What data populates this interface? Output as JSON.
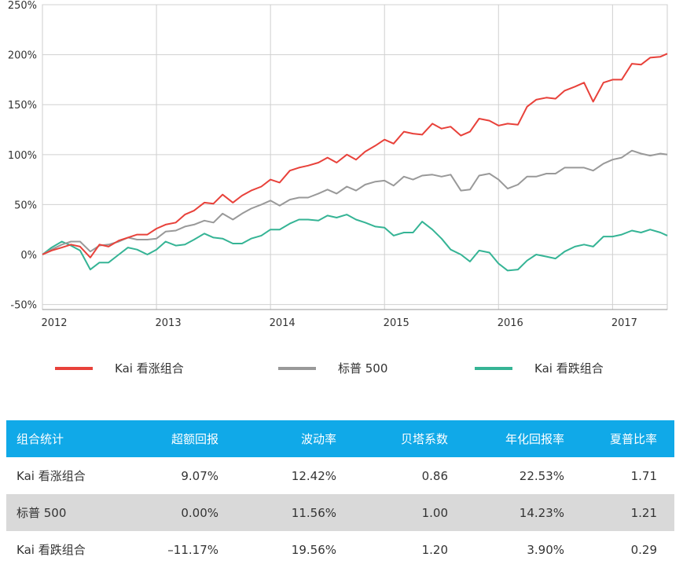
{
  "chart_data": {
    "type": "line",
    "title": "",
    "xlabel": "",
    "ylabel": "",
    "xlim": [
      2012.0,
      2017.48
    ],
    "ylim": [
      -55,
      250
    ],
    "y_ticks": [
      250,
      200,
      150,
      100,
      50,
      0,
      -50
    ],
    "y_tick_labels": [
      "250%",
      "200%",
      "150%",
      "100%",
      "50%",
      "0%",
      "-50%"
    ],
    "x_ticks": [
      2012,
      2013,
      2014,
      2015,
      2016,
      2017
    ],
    "x_tick_labels": [
      "2012",
      "2013",
      "2014",
      "2015",
      "2016",
      "2017"
    ],
    "grid": true,
    "legend_position": "bottom",
    "series": [
      {
        "name": "Kai 看涨组合",
        "color": "#e8413a",
        "x": [
          2012.0,
          2012.08,
          2012.17,
          2012.25,
          2012.33,
          2012.42,
          2012.5,
          2012.58,
          2012.67,
          2012.75,
          2012.83,
          2012.92,
          2013.0,
          2013.08,
          2013.17,
          2013.25,
          2013.33,
          2013.42,
          2013.5,
          2013.58,
          2013.67,
          2013.75,
          2013.83,
          2013.92,
          2014.0,
          2014.08,
          2014.17,
          2014.25,
          2014.33,
          2014.42,
          2014.5,
          2014.58,
          2014.67,
          2014.75,
          2014.83,
          2014.92,
          2015.0,
          2015.08,
          2015.17,
          2015.25,
          2015.33,
          2015.42,
          2015.5,
          2015.58,
          2015.67,
          2015.75,
          2015.83,
          2015.92,
          2016.0,
          2016.08,
          2016.17,
          2016.25,
          2016.33,
          2016.42,
          2016.5,
          2016.58,
          2016.67,
          2016.75,
          2016.83,
          2016.92,
          2017.0,
          2017.08,
          2017.17,
          2017.25,
          2017.33,
          2017.42,
          2017.48
        ],
        "values": [
          0,
          4,
          7,
          10,
          8,
          -3,
          10,
          8,
          14,
          17,
          20,
          20,
          26,
          30,
          32,
          40,
          44,
          52,
          51,
          60,
          52,
          59,
          64,
          68,
          75,
          72,
          84,
          87,
          89,
          92,
          97,
          92,
          100,
          95,
          103,
          109,
          115,
          111,
          123,
          121,
          120,
          131,
          126,
          128,
          119,
          123,
          136,
          134,
          129,
          131,
          130,
          148,
          155,
          157,
          156,
          164,
          168,
          172,
          153,
          172,
          175,
          175,
          191,
          190,
          197,
          198,
          201
        ]
      },
      {
        "name": "标普 500",
        "color": "#999999",
        "x": [
          2012.0,
          2012.08,
          2012.17,
          2012.25,
          2012.33,
          2012.42,
          2012.5,
          2012.58,
          2012.67,
          2012.75,
          2012.83,
          2012.92,
          2013.0,
          2013.08,
          2013.17,
          2013.25,
          2013.33,
          2013.42,
          2013.5,
          2013.58,
          2013.67,
          2013.75,
          2013.83,
          2013.92,
          2014.0,
          2014.08,
          2014.17,
          2014.25,
          2014.33,
          2014.42,
          2014.5,
          2014.58,
          2014.67,
          2014.75,
          2014.83,
          2014.92,
          2015.0,
          2015.08,
          2015.17,
          2015.25,
          2015.33,
          2015.42,
          2015.5,
          2015.58,
          2015.67,
          2015.75,
          2015.83,
          2015.92,
          2016.0,
          2016.08,
          2016.17,
          2016.25,
          2016.33,
          2016.42,
          2016.5,
          2016.58,
          2016.67,
          2016.75,
          2016.83,
          2016.92,
          2017.0,
          2017.08,
          2017.17,
          2017.25,
          2017.33,
          2017.42,
          2017.48
        ],
        "values": [
          0,
          5,
          10,
          13,
          13,
          3,
          9,
          10,
          13,
          17,
          15,
          15,
          16,
          23,
          24,
          28,
          30,
          34,
          32,
          41,
          35,
          41,
          46,
          50,
          54,
          49,
          55,
          57,
          57,
          61,
          65,
          61,
          68,
          64,
          70,
          73,
          74,
          69,
          78,
          75,
          79,
          80,
          78,
          80,
          64,
          65,
          79,
          81,
          75,
          66,
          70,
          78,
          78,
          81,
          81,
          87,
          87,
          87,
          84,
          91,
          95,
          97,
          104,
          101,
          99,
          101,
          100
        ]
      },
      {
        "name": "Kai 看跌组合",
        "color": "#35b495",
        "x": [
          2012.0,
          2012.08,
          2012.17,
          2012.25,
          2012.33,
          2012.42,
          2012.5,
          2012.58,
          2012.67,
          2012.75,
          2012.83,
          2012.92,
          2013.0,
          2013.08,
          2013.17,
          2013.25,
          2013.33,
          2013.42,
          2013.5,
          2013.58,
          2013.67,
          2013.75,
          2013.83,
          2013.92,
          2014.0,
          2014.08,
          2014.17,
          2014.25,
          2014.33,
          2014.42,
          2014.5,
          2014.58,
          2014.67,
          2014.75,
          2014.83,
          2014.92,
          2015.0,
          2015.08,
          2015.17,
          2015.25,
          2015.33,
          2015.42,
          2015.5,
          2015.58,
          2015.67,
          2015.75,
          2015.83,
          2015.92,
          2016.0,
          2016.08,
          2016.17,
          2016.25,
          2016.33,
          2016.42,
          2016.5,
          2016.58,
          2016.67,
          2016.75,
          2016.83,
          2016.92,
          2017.0,
          2017.08,
          2017.17,
          2017.25,
          2017.33,
          2017.42,
          2017.48
        ],
        "values": [
          0,
          7,
          13,
          9,
          4,
          -15,
          -8,
          -8,
          0,
          7,
          5,
          0,
          5,
          13,
          9,
          10,
          15,
          21,
          17,
          16,
          11,
          11,
          16,
          19,
          25,
          25,
          31,
          35,
          35,
          34,
          39,
          37,
          40,
          35,
          32,
          28,
          27,
          19,
          22,
          22,
          33,
          25,
          16,
          5,
          0,
          -7,
          4,
          2,
          -9,
          -16,
          -15,
          -6,
          0,
          -2,
          -4,
          3,
          8,
          10,
          8,
          18,
          18,
          20,
          24,
          22,
          25,
          22,
          19
        ]
      }
    ],
    "legend": [
      "Kai 看涨组合",
      "标普 500",
      "Kai 看跌组合"
    ]
  },
  "stats_table": {
    "headers": [
      "组合统计",
      "超额回报",
      "波动率",
      "贝塔系数",
      "年化回报率",
      "夏普比率"
    ],
    "rows": [
      [
        "Kai 看涨组合",
        "9.07%",
        "12.42%",
        "0.86",
        "22.53%",
        "1.71"
      ],
      [
        "标普 500",
        "0.00%",
        "11.56%",
        "1.00",
        "14.23%",
        "1.21"
      ],
      [
        "Kai 看跌组合",
        "–11.17%",
        "19.56%",
        "1.20",
        "3.90%",
        "0.29"
      ]
    ],
    "header_color": "#10a9e8",
    "shade_color": "#d9d9d9"
  }
}
